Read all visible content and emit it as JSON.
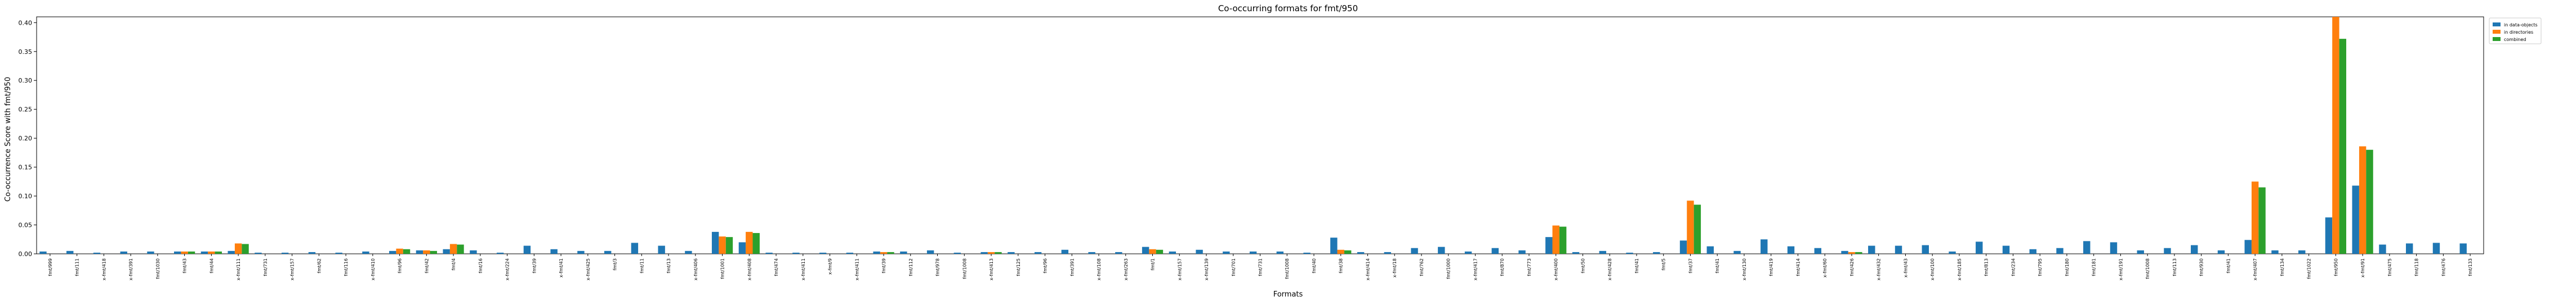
{
  "chart_data": {
    "type": "bar",
    "title": "Co-occurring formats for fmt/950",
    "xlabel": "Formats",
    "ylabel": "Co-occurrence Score with fmt/950",
    "ylim": [
      0,
      0.41
    ],
    "yticks": [
      0.0,
      0.05,
      0.1,
      0.15,
      0.2,
      0.25,
      0.3,
      0.35,
      0.4
    ],
    "ytick_labels": [
      "0.00",
      "0.05",
      "0.10",
      "0.15",
      "0.20",
      "0.25",
      "0.30",
      "0.35",
      "0.40"
    ],
    "grid": false,
    "legend_position": "top-right (outside)",
    "series_colors": [
      "#1f77b4",
      "#ff7f0e",
      "#2ca02c"
    ],
    "categories": [
      "fmt/999",
      "fmt/111",
      "x-fmt/418",
      "x-fmt/391",
      "fmt/1030",
      "fmt/43",
      "fmt/44",
      "x-fmt/111",
      "fmt/731",
      "x-fmt/157",
      "fmt/62",
      "fmt/116",
      "x-fmt/410",
      "fmt/96",
      "fmt/42",
      "fmt/4",
      "fmt/16",
      "x-fmt/224",
      "fmt/39",
      "x-fmt/41",
      "x-fmt/425",
      "fmt/3",
      "fmt/11",
      "fmt/13",
      "x-fmt/406",
      "fmt/1001",
      "x-fmt/408",
      "fmt/474",
      "x-fmt/411",
      "x-fmt/9",
      "x-fmt/411",
      "fmt/39",
      "fmt/112",
      "fmt/978",
      "fmt/1008",
      "x-fmt/413",
      "fmt/125",
      "fmt/96",
      "fmt/391",
      "x-fmt/108",
      "x-fmt/263",
      "fmt/1",
      "x-fmt/157",
      "x-fmt/139",
      "fmt/701",
      "fmt/731",
      "fmt/1008",
      "fmt/40",
      "fmt/38",
      "x-fmt/414",
      "x-fmt/18",
      "fmt/762",
      "fmt/1000",
      "x-fmt/417",
      "fmt/870",
      "fmt/773",
      "x-fmt/400",
      "fmt/50",
      "x-fmt/428",
      "fmt/41",
      "fmt/5",
      "fmt/37",
      "fmt/41",
      "x-fmt/130",
      "fmt/419",
      "fmt/414",
      "x-fmt/60",
      "fmt/426",
      "x-fmt/432",
      "x-fmt/43",
      "x-fmt/100",
      "x-fmt/185",
      "fmt/813",
      "fmt/234",
      "fmt/795",
      "fmt/180",
      "fmt/181",
      "x-fmt/191",
      "fmt/1008",
      "fmt/113",
      "fmt/930",
      "fmt/41",
      "x-fmt/407",
      "fmt/134",
      "fmt/1022",
      "fmt/950",
      "x-fmt/91",
      "fmt/475",
      "fmt/118",
      "fmt/476",
      "fmt/133"
    ],
    "series": [
      {
        "name": "in data-objects",
        "values": [
          0.004,
          0.005,
          0.002,
          0.004,
          0.004,
          0.004,
          0.004,
          0.005,
          0.002,
          0.002,
          0.003,
          0.002,
          0.004,
          0.005,
          0.006,
          0.008,
          0.006,
          0.002,
          0.014,
          0.008,
          0.005,
          0.005,
          0.019,
          0.014,
          0.005,
          0.038,
          0.02,
          0.002,
          0.002,
          0.002,
          0.002,
          0.004,
          0.004,
          0.006,
          0.002,
          0.003,
          0.003,
          0.003,
          0.007,
          0.003,
          0.003,
          0.012,
          0.004,
          0.007,
          0.004,
          0.004,
          0.004,
          0.002,
          0.028,
          0.003,
          0.003,
          0.01,
          0.012,
          0.004,
          0.01,
          0.006,
          0.029,
          0.003,
          0.005,
          0.002,
          0.003,
          0.023,
          0.013,
          0.005,
          0.025,
          0.013,
          0.01,
          0.005,
          0.014,
          0.014,
          0.015,
          0.004,
          0.021,
          0.014,
          0.008,
          0.01,
          0.022,
          0.02,
          0.006,
          0.01,
          0.015,
          0.006,
          0.024,
          0.006,
          0.006,
          0.063,
          0.118,
          0.016,
          0.018,
          0.019,
          0.018
        ]
      },
      {
        "name": "in directories",
        "values": [
          0,
          0,
          0,
          0,
          0,
          0.004,
          0.004,
          0.018,
          0,
          0,
          0,
          0,
          0,
          0.009,
          0.006,
          0.017,
          0,
          0,
          0,
          0,
          0,
          0,
          0,
          0,
          0,
          0.03,
          0.038,
          0,
          0,
          0,
          0,
          0.003,
          0,
          0,
          0,
          0.003,
          0,
          0,
          0,
          0,
          0,
          0.008,
          0,
          0,
          0,
          0,
          0,
          0,
          0.007,
          0,
          0,
          0,
          0,
          0,
          0,
          0,
          0.049,
          0,
          0,
          0,
          0,
          0.092,
          0,
          0,
          0,
          0,
          0,
          0.003,
          0,
          0,
          0,
          0,
          0,
          0,
          0,
          0,
          0,
          0,
          0,
          0,
          0,
          0,
          0.125,
          0,
          0,
          0.41,
          0.186,
          0,
          0,
          0,
          0
        ]
      },
      {
        "name": "combined",
        "values": [
          0,
          0,
          0,
          0,
          0,
          0.004,
          0.004,
          0.017,
          0,
          0,
          0,
          0,
          0,
          0.008,
          0.005,
          0.016,
          0,
          0,
          0,
          0,
          0,
          0,
          0,
          0,
          0,
          0.029,
          0.036,
          0,
          0,
          0,
          0,
          0.003,
          0,
          0,
          0,
          0.003,
          0,
          0,
          0,
          0,
          0,
          0.007,
          0,
          0,
          0,
          0,
          0,
          0,
          0.006,
          0,
          0,
          0,
          0,
          0,
          0,
          0,
          0.047,
          0,
          0,
          0,
          0,
          0.085,
          0,
          0,
          0,
          0,
          0,
          0.003,
          0,
          0,
          0,
          0,
          0,
          0,
          0,
          0,
          0,
          0,
          0,
          0,
          0,
          0,
          0.115,
          0,
          0,
          0.372,
          0.18,
          0,
          0,
          0,
          0
        ]
      }
    ]
  }
}
